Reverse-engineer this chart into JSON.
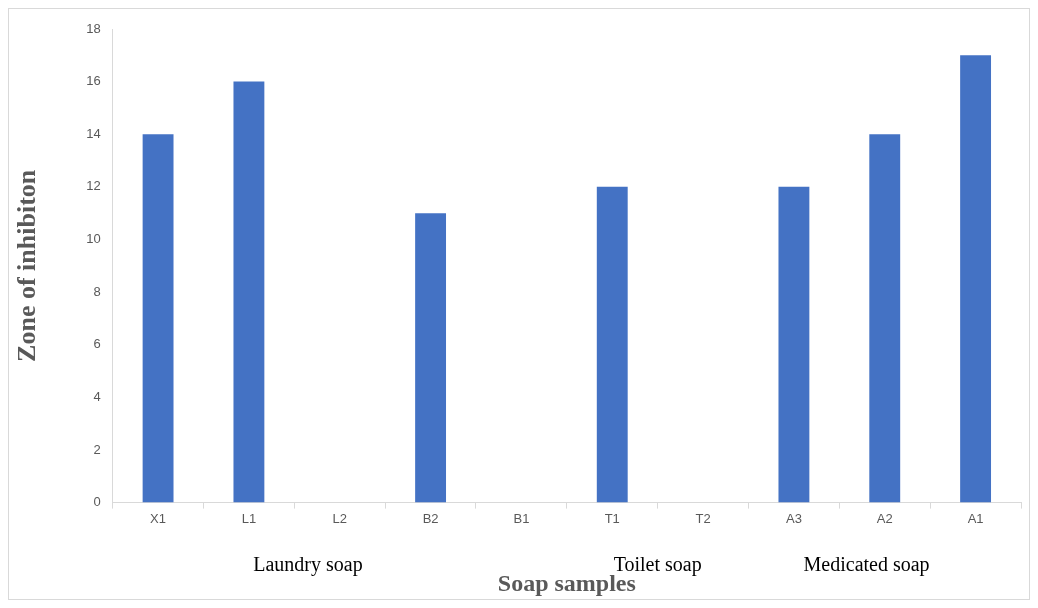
{
  "chart_data": {
    "type": "bar",
    "xlabel": "Soap samples",
    "ylabel": "Zone of inhibiton",
    "categories": [
      "X1",
      "L1",
      "L2",
      "B2",
      "B1",
      "T1",
      "T2",
      "A3",
      "A2",
      "A1"
    ],
    "values": [
      14,
      16,
      0,
      11,
      0,
      12,
      0,
      12,
      14,
      17
    ],
    "color": "#4472c4",
    "ylim": [
      0,
      18
    ],
    "yticks": [
      0,
      2,
      4,
      6,
      8,
      10,
      12,
      14,
      16,
      18
    ],
    "grid": false,
    "legend": false,
    "annotations": [
      "Laundry soap",
      "Toilet soap",
      "Medicated soap"
    ]
  }
}
